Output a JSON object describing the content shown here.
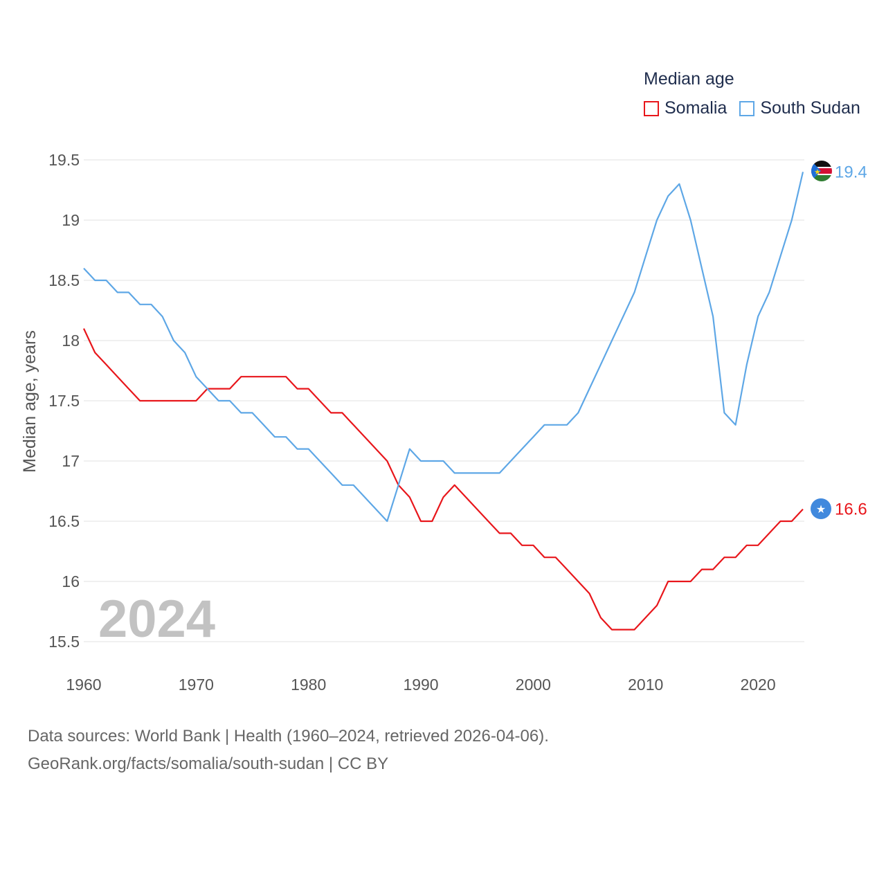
{
  "legend": {
    "title": "Median age",
    "items": [
      {
        "label": "Somalia",
        "color": "#e8161b"
      },
      {
        "label": "South Sudan",
        "color": "#5ea7e6"
      }
    ]
  },
  "footer": {
    "line1": "Data sources: World Bank | Health (1960–2024, retrieved 2026-04-06).",
    "line2": "GeoRank.org/facts/somalia/south-sudan | CC BY"
  },
  "chart_data": {
    "type": "line",
    "title": "Median age",
    "ylabel": "Median age, years",
    "xlabel": "",
    "year_label": "2024",
    "xlim": [
      1960,
      2024
    ],
    "ylim": [
      15.5,
      19.5
    ],
    "x_ticks": [
      1960,
      1970,
      1980,
      1990,
      2000,
      2010,
      2020
    ],
    "y_ticks": [
      15.5,
      16,
      16.5,
      17,
      17.5,
      18,
      18.5,
      19,
      19.5
    ],
    "y_tick_labels": [
      "15.5",
      "16",
      "16.5",
      "17",
      "17.5",
      "18",
      "18.5",
      "19",
      "19.5"
    ],
    "grid": true,
    "x": [
      1960,
      1961,
      1962,
      1963,
      1964,
      1965,
      1966,
      1967,
      1968,
      1969,
      1970,
      1971,
      1972,
      1973,
      1974,
      1975,
      1976,
      1977,
      1978,
      1979,
      1980,
      1981,
      1982,
      1983,
      1984,
      1985,
      1986,
      1987,
      1988,
      1989,
      1990,
      1991,
      1992,
      1993,
      1994,
      1995,
      1996,
      1997,
      1998,
      1999,
      2000,
      2001,
      2002,
      2003,
      2004,
      2005,
      2006,
      2007,
      2008,
      2009,
      2010,
      2011,
      2012,
      2013,
      2014,
      2015,
      2016,
      2017,
      2018,
      2019,
      2020,
      2021,
      2022,
      2023,
      2024
    ],
    "series": [
      {
        "name": "Somalia",
        "color": "#e8161b",
        "end_label": "16.6",
        "values": [
          18.1,
          17.9,
          17.8,
          17.7,
          17.6,
          17.5,
          17.5,
          17.5,
          17.5,
          17.5,
          17.5,
          17.6,
          17.6,
          17.6,
          17.7,
          17.7,
          17.7,
          17.7,
          17.7,
          17.6,
          17.6,
          17.5,
          17.4,
          17.4,
          17.3,
          17.2,
          17.1,
          17.0,
          16.8,
          16.7,
          16.5,
          16.5,
          16.7,
          16.8,
          16.7,
          16.6,
          16.5,
          16.4,
          16.4,
          16.3,
          16.3,
          16.2,
          16.2,
          16.1,
          16.0,
          15.9,
          15.7,
          15.6,
          15.6,
          15.6,
          15.7,
          15.8,
          16.0,
          16.0,
          16.0,
          16.1,
          16.1,
          16.2,
          16.2,
          16.3,
          16.3,
          16.4,
          16.5,
          16.5,
          16.6
        ]
      },
      {
        "name": "South Sudan",
        "color": "#5ea7e6",
        "end_label": "19.4",
        "values": [
          18.6,
          18.5,
          18.5,
          18.4,
          18.4,
          18.3,
          18.3,
          18.2,
          18.0,
          17.9,
          17.7,
          17.6,
          17.5,
          17.5,
          17.4,
          17.4,
          17.3,
          17.2,
          17.2,
          17.1,
          17.1,
          17.0,
          16.9,
          16.8,
          16.8,
          16.7,
          16.6,
          16.5,
          16.8,
          17.1,
          17.0,
          17.0,
          17.0,
          16.9,
          16.9,
          16.9,
          16.9,
          16.9,
          17.0,
          17.1,
          17.2,
          17.3,
          17.3,
          17.3,
          17.4,
          17.6,
          17.8,
          18.0,
          18.2,
          18.4,
          18.7,
          19.0,
          19.2,
          19.3,
          19.0,
          18.6,
          18.2,
          17.4,
          17.3,
          17.8,
          18.2,
          18.4,
          18.7,
          19.0,
          19.4
        ]
      }
    ]
  }
}
